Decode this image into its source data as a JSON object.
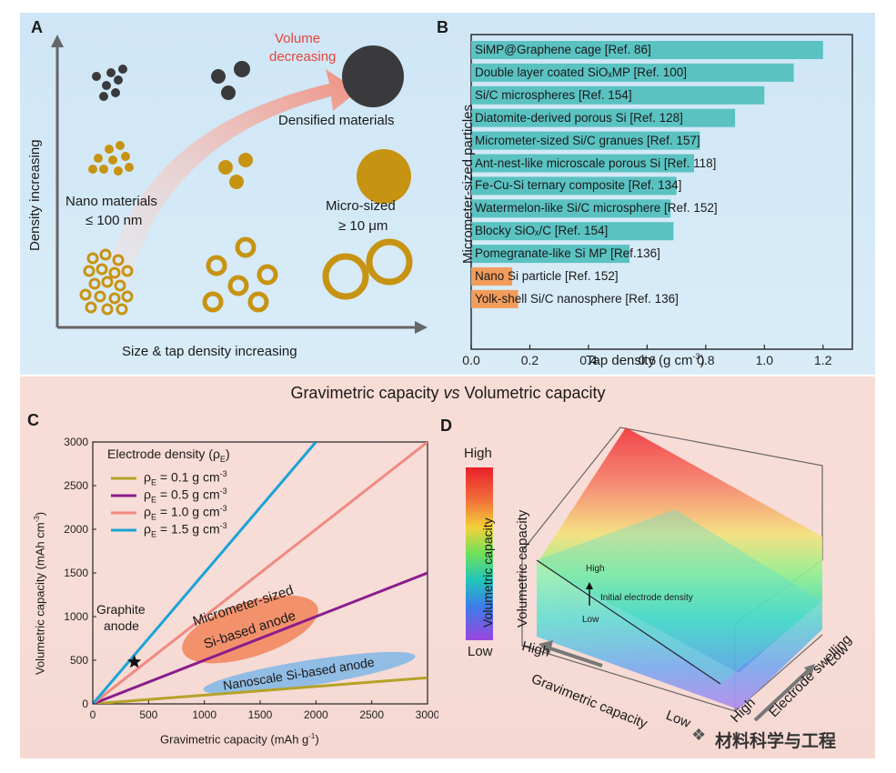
{
  "panel_a": {
    "letter": "A",
    "y_axis_label": "Density increasing",
    "x_axis_label": "Size & tap density increasing",
    "arrow_label_line1": "Volume",
    "arrow_label_line2": "decreasing",
    "densified_label": "Densified materials",
    "nano_label_line1": "Nano materials",
    "nano_label_line2": "≤ 100 nm",
    "micro_label_line1": "Micro-sized",
    "micro_label_line2": "≥ 10 μm",
    "colors": {
      "dark": "#3a3a3c",
      "gold": "#c79312",
      "arrow": "#f09c8e"
    }
  },
  "panel_b": {
    "letter": "B",
    "y_axis_label": "Micrometer-sized particles",
    "x_axis_label": "Tap density (g cm",
    "x_axis_label_sup": "-3",
    "x_axis_label_end": ")",
    "colors": {
      "micro": "#5bc2c2",
      "nano": "#f29c5c"
    }
  },
  "panel_c": {
    "letter": "C",
    "ylabel_main": "Volumetric capacity (mAh cm",
    "ylabel_sup": "-3",
    "ylabel_end": ")",
    "xlabel_main": "Gravimetric capacity (mAh g",
    "xlabel_sup": "-1",
    "xlabel_end": ")",
    "legend_title": "Electrode density (ρ",
    "legend_title_sub": "E",
    "legend_title_end": ")",
    "graphite_line1": "Graphite",
    "graphite_line2": "anode",
    "micro_region_line1": "Micrometer-sized",
    "micro_region_line2": "Si-based anode",
    "nano_region": "Nanoscale Si-based anode"
  },
  "panel_d": {
    "letter": "D",
    "colorbar_high": "High",
    "colorbar_low": "Low",
    "colorbar_label": "Volumetric capacity",
    "z_axis_label": "Volumetric capacity",
    "x_axis_label": "Gravimetric capacity",
    "x_high": "High",
    "x_low": "Low",
    "y_axis_label": "Electrode swelling",
    "y_high": "High",
    "y_low": "Low",
    "density_high": "High",
    "density_label": "Initial electrode density",
    "density_low": "Low"
  },
  "section_title": "Gravimetric capacity vs Volumetric capacity",
  "section_title_pre": "Gravimetric capacity ",
  "section_title_vs": "vs",
  "section_title_post": " Volumetric capacity",
  "watermark": "材料科学与工程",
  "chart_data": [
    {
      "id": "B",
      "type": "bar",
      "orientation": "horizontal",
      "categories": [
        "SiMP@Graphene cage [Ref. 86]",
        "Double layer coated SiOₓMP [Ref. 100]",
        "Si/C microspheres [Ref. 154]",
        "Diatomite-derived porous Si [Ref. 128]",
        "Micrometer-sized Si/C granues [Ref. 157]",
        "Ant-nest-like microscale porous Si [Ref. 118]",
        "Fe-Cu-Si ternary composite [Ref. 134]",
        "Watermelon-like Si/C microsphere [Ref. 152]",
        "Blocky SiOₓ/C [Ref. 154]",
        "Pomegranate-like Si MP [Ref.136]",
        "Nano Si particle [Ref. 152]",
        "Yolk-shell Si/C nanosphere [Ref. 136]"
      ],
      "values": [
        1.2,
        1.1,
        1.0,
        0.9,
        0.78,
        0.76,
        0.7,
        0.68,
        0.69,
        0.54,
        0.14,
        0.16
      ],
      "groups": [
        "micro",
        "micro",
        "micro",
        "micro",
        "micro",
        "micro",
        "micro",
        "micro",
        "micro",
        "micro",
        "nano",
        "nano"
      ],
      "xlabel": "Tap density (g cm-3)",
      "ylabel": "Micrometer-sized particles",
      "xlim": [
        0,
        1.3
      ],
      "xticks": [
        0.0,
        0.2,
        0.4,
        0.6,
        0.8,
        1.0,
        1.2
      ],
      "xtick_labels": [
        "0.0",
        "0.2",
        "0.4",
        "0.6",
        "0.8",
        "1.0",
        "1.2"
      ]
    },
    {
      "id": "C",
      "type": "line",
      "xlabel": "Gravimetric capacity (mAh g-1)",
      "ylabel": "Volumetric capacity (mAh cm-3)",
      "xlim": [
        0,
        3000
      ],
      "ylim": [
        0,
        3000
      ],
      "xticks": [
        0,
        500,
        1000,
        1500,
        2000,
        2500,
        3000
      ],
      "yticks": [
        0,
        500,
        1000,
        1500,
        2000,
        2500,
        3000
      ],
      "series": [
        {
          "name": "ρE = 0.1 g cm-3",
          "label_main": "ρ",
          "label_sub": "E",
          "label_rest": " = 0.1 g cm",
          "label_sup": "-3",
          "slope": 0.1,
          "color": "#b5a227"
        },
        {
          "name": "ρE = 0.5 g cm-3",
          "label_main": "ρ",
          "label_sub": "E",
          "label_rest": " = 0.5 g cm",
          "label_sup": "-3",
          "slope": 0.5,
          "color": "#8a1d8c"
        },
        {
          "name": "ρE = 1.0 g cm-3",
          "label_main": "ρ",
          "label_sub": "E",
          "label_rest": " = 1.0 g cm",
          "label_sup": "-3",
          "slope": 1.0,
          "color": "#f08a80"
        },
        {
          "name": "ρE = 1.5 g cm-3",
          "label_main": "ρ",
          "label_sub": "E",
          "label_rest": " = 1.5 g cm",
          "label_sup": "-3",
          "slope": 1.5,
          "color": "#1ba3d6"
        }
      ],
      "graphite_point": {
        "x": 372,
        "y": 480
      }
    }
  ]
}
